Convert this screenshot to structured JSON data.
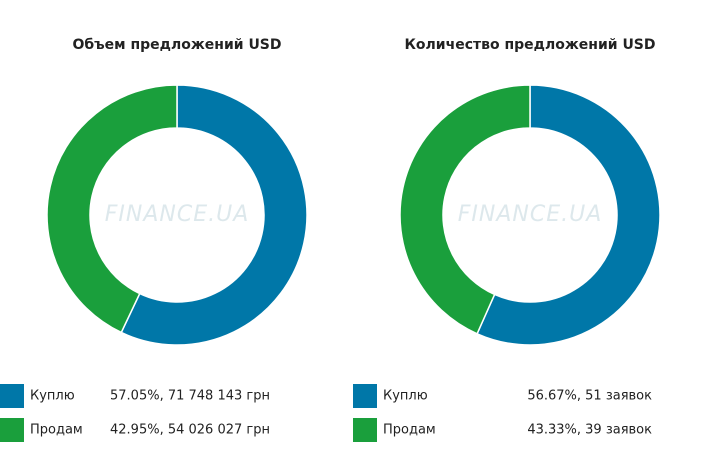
{
  "chart_data": [
    {
      "type": "pie",
      "title": "Объем предложений USD",
      "watermark": "FINANCE.UA",
      "categories": [
        "Куплю",
        "Продам"
      ],
      "values": [
        57.05,
        42.95
      ],
      "value_labels": [
        "57.05%, 71 748 143 грн",
        "42.95%, 54 026 027 грн"
      ],
      "colors": [
        "#0077a8",
        "#1a9f3c"
      ]
    },
    {
      "type": "pie",
      "title": "Количество предложений USD",
      "watermark": "FINANCE.UA",
      "categories": [
        "Куплю",
        "Продам"
      ],
      "values": [
        56.67,
        43.33
      ],
      "value_labels": [
        "56.67%, 51 заявок",
        "43.33%, 39 заявок"
      ],
      "colors": [
        "#0077a8",
        "#1a9f3c"
      ]
    }
  ]
}
